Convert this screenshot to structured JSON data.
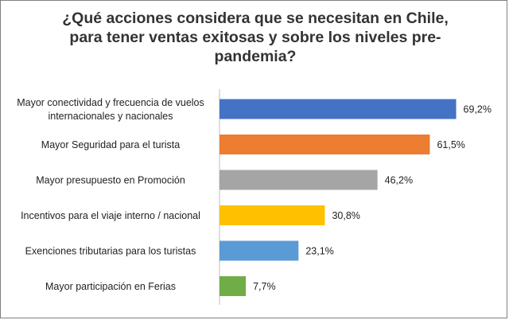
{
  "chart_data": {
    "type": "bar",
    "orientation": "horizontal",
    "title": "¿Qué acciones considera que se necesitan en Chile,\npara tener ventas exitosas y sobre los niveles pre-\npandemia?",
    "categories": [
      [
        "Mayor conectividad y frecuencia de vuelos",
        "internacionales y nacionales"
      ],
      [
        "Mayor Seguridad para el turista"
      ],
      [
        "Mayor presupuesto en Promoción"
      ],
      [
        "Incentivos para el viaje interno / nacional"
      ],
      [
        "Exenciones tributarias para los turistas"
      ],
      [
        "Mayor participación en Ferias"
      ]
    ],
    "values": [
      69.2,
      61.5,
      46.2,
      30.8,
      23.1,
      7.7
    ],
    "value_labels": [
      "69,2%",
      "61,5%",
      "46,2%",
      "30,8%",
      "23,1%",
      "7,7%"
    ],
    "colors": [
      "#4472c4",
      "#ed7d31",
      "#a5a5a5",
      "#ffc000",
      "#5b9bd5",
      "#70ad47"
    ],
    "xlim": [
      0,
      100
    ],
    "grid": false,
    "legend": false
  }
}
